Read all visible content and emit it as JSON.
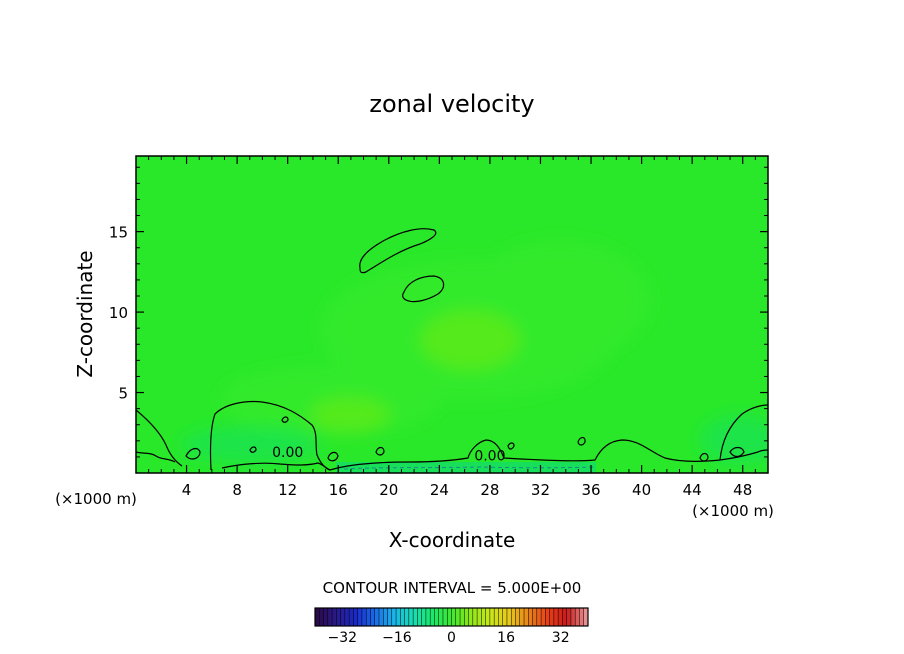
{
  "chart_data": {
    "type": "heatmap",
    "title": "zonal velocity",
    "xlabel": "X-coordinate",
    "ylabel": "Z-coordinate",
    "x_unit_label": "(×1000 m)",
    "xlim": [
      0,
      50
    ],
    "ylim": [
      0,
      19.7
    ],
    "x_ticks": [
      4,
      8,
      12,
      16,
      20,
      24,
      28,
      32,
      36,
      40,
      44,
      48
    ],
    "y_ticks": [
      5,
      10,
      15
    ],
    "x_tick_labels": [
      "4",
      "8",
      "12",
      "16",
      "20",
      "24",
      "28",
      "32",
      "36",
      "40",
      "44",
      "48"
    ],
    "y_tick_labels": [
      "5",
      "10",
      "15"
    ],
    "contour_interval_label": "CONTOUR INTERVAL = 5.000E+00",
    "contour_labels": [
      {
        "text": "0.00",
        "x": 12,
        "y": 1.3
      },
      {
        "text": "0.00",
        "x": 28,
        "y": 1.1
      }
    ],
    "colorbar": {
      "range": [
        -40,
        40
      ],
      "tick_values": [
        -32,
        -16,
        0,
        16,
        32
      ],
      "tick_labels": [
        "−32",
        "−16",
        "0",
        "16",
        "32"
      ],
      "colors": [
        "#2a0a4a",
        "#2a1a8a",
        "#1a2ac8",
        "#1a6ae8",
        "#1ab4e8",
        "#1adcb4",
        "#1ae86a",
        "#40e830",
        "#8ee81a",
        "#c8e81a",
        "#e8c81a",
        "#e8841a",
        "#e8401a",
        "#c81a1a",
        "#e89090"
      ]
    },
    "field_colors": {
      "background": "#29e829",
      "lighter_patch": "#33ea2a",
      "yellowish_patch": "#55ea1e",
      "near_surface": "#1fe448",
      "surface_strip": "#18df5a"
    }
  }
}
